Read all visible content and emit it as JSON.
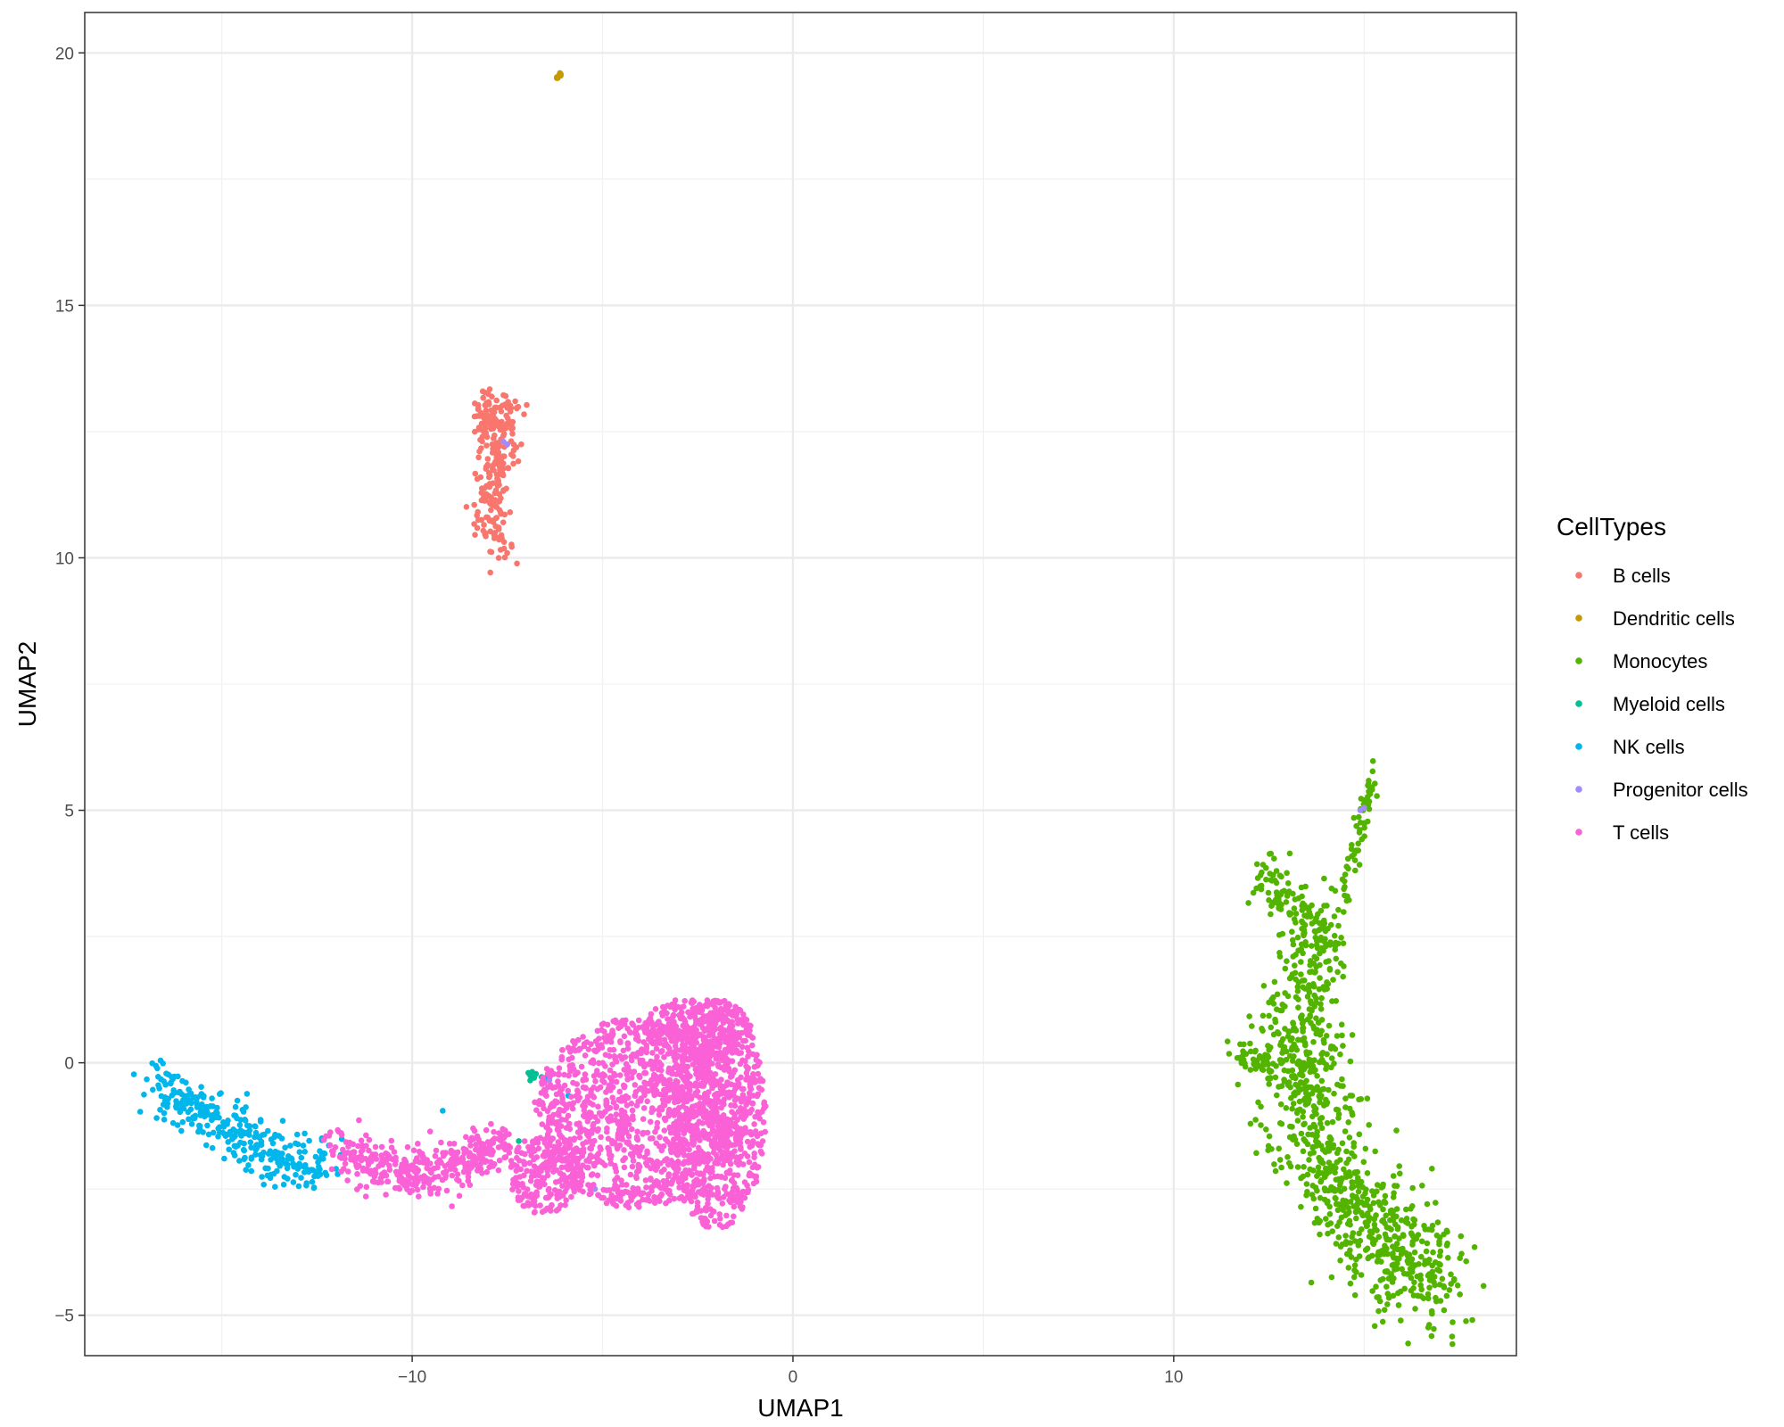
{
  "chart_data": {
    "type": "scatter",
    "title": "",
    "xlabel": "UMAP1",
    "ylabel": "UMAP2",
    "xlim": [
      -18.6,
      19.0
    ],
    "ylim": [
      -5.8,
      20.8
    ],
    "x_ticks": [
      -10,
      0,
      10
    ],
    "x_tick_labels": [
      "−10",
      "0",
      "10"
    ],
    "y_ticks": [
      -5,
      0,
      5,
      10,
      15,
      20
    ],
    "y_tick_labels": [
      "−5",
      "0",
      "5",
      "10",
      "15",
      "20"
    ],
    "grid": true,
    "legend_title": "CellTypes",
    "legend_position": "right",
    "series": [
      {
        "name": "B cells",
        "color": "#F8766D",
        "regions": [
          {
            "shape": "path",
            "width": 0.45,
            "n": 260,
            "points": [
              [
                -7.7,
                10.2
              ],
              [
                -7.9,
                10.7
              ],
              [
                -8.0,
                11.1
              ],
              [
                -7.8,
                11.5
              ],
              [
                -7.6,
                11.9
              ],
              [
                -7.7,
                12.2
              ],
              [
                -8.0,
                12.5
              ],
              [
                -8.1,
                12.8
              ],
              [
                -7.9,
                13.0
              ],
              [
                -7.6,
                12.9
              ],
              [
                -7.4,
                12.6
              ]
            ]
          }
        ],
        "points": []
      },
      {
        "name": "Dendritic cells",
        "color": "#C49A00",
        "regions": [],
        "points": [
          [
            -6.2,
            19.5
          ],
          [
            -6.15,
            19.55
          ],
          [
            -6.1,
            19.58
          ],
          [
            -6.2,
            19.52
          ],
          [
            -6.12,
            19.6
          ],
          [
            -6.18,
            19.5
          ],
          [
            -6.1,
            19.55
          ]
        ]
      },
      {
        "name": "Monocytes",
        "color": "#53B400",
        "regions": [
          {
            "shape": "path",
            "width": 0.2,
            "n": 60,
            "points": [
              [
                15.3,
                5.8
              ],
              [
                15.1,
                5.2
              ],
              [
                14.8,
                4.5
              ],
              [
                14.6,
                3.8
              ],
              [
                14.4,
                3.2
              ]
            ]
          },
          {
            "shape": "path",
            "width": 0.6,
            "n": 140,
            "points": [
              [
                12.2,
                3.9
              ],
              [
                12.7,
                3.4
              ],
              [
                13.3,
                3.0
              ],
              [
                13.8,
                2.6
              ],
              [
                14.2,
                2.2
              ]
            ]
          },
          {
            "shape": "path",
            "width": 1.1,
            "n": 900,
            "points": [
              [
                13.5,
                2.0
              ],
              [
                13.4,
                1.0
              ],
              [
                13.3,
                0.0
              ],
              [
                13.6,
                -1.0
              ],
              [
                14.0,
                -2.0
              ],
              [
                14.6,
                -2.8
              ],
              [
                15.4,
                -3.5
              ],
              [
                16.3,
                -4.1
              ],
              [
                17.2,
                -4.5
              ]
            ]
          },
          {
            "shape": "path",
            "width": 0.25,
            "n": 40,
            "points": [
              [
                11.7,
                0.1
              ],
              [
                12.2,
                0.0
              ],
              [
                12.7,
                -0.1
              ]
            ]
          }
        ],
        "points": []
      },
      {
        "name": "Myeloid cells",
        "color": "#00C094",
        "regions": [],
        "points": [
          [
            -6.95,
            -0.2
          ],
          [
            -6.9,
            -0.25
          ],
          [
            -6.85,
            -0.18
          ],
          [
            -6.8,
            -0.3
          ],
          [
            -6.75,
            -0.22
          ],
          [
            -6.6,
            -0.28
          ],
          [
            -6.5,
            -0.32
          ],
          [
            -6.4,
            -0.3
          ],
          [
            -7.2,
            -1.55
          ],
          [
            -6.9,
            -0.35
          ]
        ]
      },
      {
        "name": "NK cells",
        "color": "#00B6EB",
        "regions": [
          {
            "shape": "path",
            "width": 0.55,
            "n": 320,
            "points": [
              [
                -16.8,
                -0.4
              ],
              [
                -16.2,
                -0.7
              ],
              [
                -15.5,
                -1.0
              ],
              [
                -14.8,
                -1.3
              ],
              [
                -14.1,
                -1.6
              ],
              [
                -13.5,
                -1.9
              ],
              [
                -12.9,
                -2.0
              ],
              [
                -12.3,
                -1.9
              ]
            ]
          }
        ],
        "points": [
          [
            -9.2,
            -0.95
          ],
          [
            -6.5,
            -0.3
          ],
          [
            -5.9,
            -0.65
          ],
          [
            -12.0,
            -2.1
          ],
          [
            -13.4,
            -1.15
          ]
        ]
      },
      {
        "name": "Progenitor cells",
        "color": "#A58AFF",
        "regions": [],
        "points": [
          [
            14.9,
            5.0
          ],
          [
            15.0,
            5.05
          ],
          [
            -7.6,
            12.3
          ],
          [
            -7.5,
            12.25
          ],
          [
            -6.4,
            -0.35
          ],
          [
            -5.2,
            -2.5
          ]
        ]
      },
      {
        "name": "T cells",
        "color": "#FB61D7",
        "regions": [
          {
            "shape": "path",
            "width": 0.5,
            "n": 380,
            "points": [
              [
                -12.2,
                -1.8
              ],
              [
                -11.2,
                -1.9
              ],
              [
                -10.2,
                -2.2
              ],
              [
                -9.2,
                -2.0
              ],
              [
                -8.3,
                -1.9
              ],
              [
                -7.5,
                -1.6
              ]
            ]
          },
          {
            "shape": "ellipse",
            "cx": -4.0,
            "cy": -1.0,
            "rx": 2.8,
            "ry": 1.9,
            "n": 1200
          },
          {
            "shape": "ellipse",
            "cx": -2.0,
            "cy": -1.0,
            "rx": 1.3,
            "ry": 2.3,
            "n": 650
          },
          {
            "shape": "ellipse",
            "cx": -6.5,
            "cy": -2.2,
            "rx": 1.0,
            "ry": 0.8,
            "n": 220
          },
          {
            "shape": "ellipse",
            "cx": -2.5,
            "cy": 0.7,
            "rx": 1.4,
            "ry": 0.6,
            "n": 240
          }
        ],
        "points": []
      }
    ]
  }
}
